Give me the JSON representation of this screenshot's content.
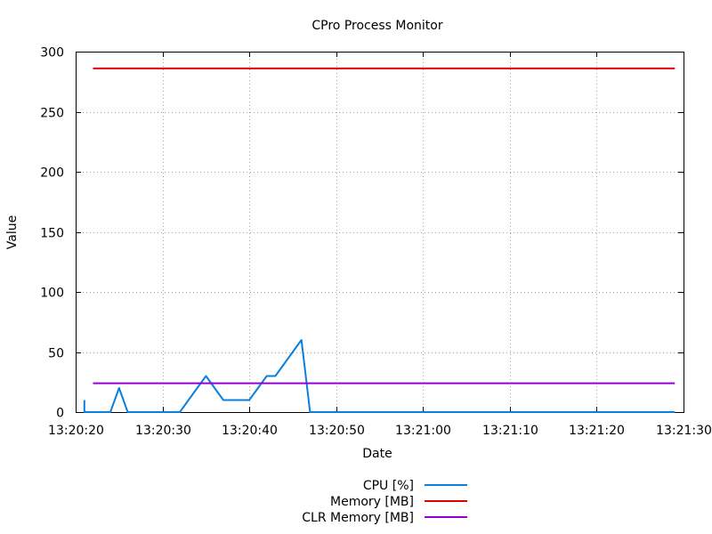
{
  "chart_data": {
    "type": "line",
    "title": "CPro Process Monitor",
    "xlabel": "Date",
    "ylabel": "Value",
    "xlim": [
      "13:20:20",
      "13:21:30"
    ],
    "ylim": [
      0,
      300
    ],
    "x_ticks": [
      "13:20:20",
      "13:20:30",
      "13:20:40",
      "13:20:50",
      "13:21:00",
      "13:21:10",
      "13:21:20",
      "13:21:30"
    ],
    "y_ticks": [
      0,
      50,
      100,
      150,
      200,
      250,
      300
    ],
    "grid": true,
    "legend_position": "bottom-center",
    "series": [
      {
        "name": "CPU [%]",
        "color": "#0a7fdc",
        "points": [
          {
            "x": "13:20:21",
            "y": 10
          },
          {
            "x": "13:20:21",
            "y": 0
          },
          {
            "x": "13:20:24",
            "y": 0
          },
          {
            "x": "13:20:25",
            "y": 20
          },
          {
            "x": "13:20:26",
            "y": 0
          },
          {
            "x": "13:20:32",
            "y": 0
          },
          {
            "x": "13:20:33",
            "y": 10
          },
          {
            "x": "13:20:35",
            "y": 30
          },
          {
            "x": "13:20:37",
            "y": 10
          },
          {
            "x": "13:20:40",
            "y": 10
          },
          {
            "x": "13:20:42",
            "y": 30
          },
          {
            "x": "13:20:43",
            "y": 30
          },
          {
            "x": "13:20:44",
            "y": 40
          },
          {
            "x": "13:20:45",
            "y": 50
          },
          {
            "x": "13:20:46",
            "y": 60
          },
          {
            "x": "13:20:47",
            "y": 0
          },
          {
            "x": "13:21:29",
            "y": 0
          }
        ]
      },
      {
        "name": "Memory [MB]",
        "color": "#dd0000",
        "points": [
          {
            "x": "13:20:22",
            "y": 286
          },
          {
            "x": "13:21:29",
            "y": 286
          }
        ]
      },
      {
        "name": "CLR Memory [MB]",
        "color": "#9400d3",
        "points": [
          {
            "x": "13:20:22",
            "y": 24
          },
          {
            "x": "13:21:29",
            "y": 24
          }
        ]
      }
    ]
  }
}
